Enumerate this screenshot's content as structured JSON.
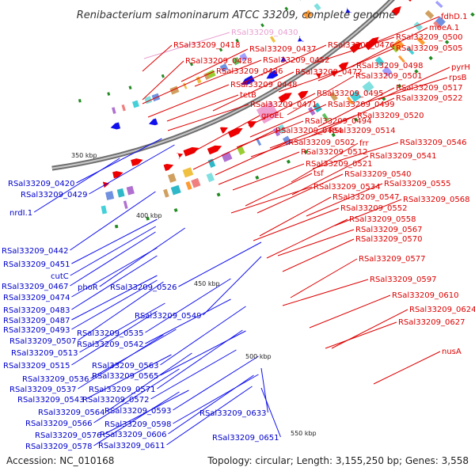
{
  "title": "Renibacterium salmoninarum ATCC 33209, complete genome",
  "accession": "Accession: NC_010168",
  "topology": "Topology: circular; Length: 3,155,250 bp; Genes: 3,558",
  "colors": {
    "forward": "#ee0000",
    "reverse": "#1010ee",
    "pseudo": "#f0a0d0",
    "backbone": "#909090",
    "tick": "#228b22"
  },
  "scale_labels": [
    "350 kbp",
    "400 kbp",
    "450 kbp",
    "500 kbp",
    "550 kbp"
  ],
  "forward_labels": [
    "RSal33209_0430",
    "fdhD.1",
    "moeA.1",
    "RSal33209_0418",
    "RSal33209_0437",
    "RSal33209_0476",
    "RSal33209_0500",
    "RSal33209_0505",
    "RSal33209_0428",
    "RSal33209_0452",
    "RSal33209_0436",
    "RSal33209_0472",
    "RSal33209_0498",
    "pyrH",
    "RSal33209_0501",
    "rpsB",
    "RSal33209_0448",
    "RSal33209_0517",
    "tetB",
    "RSal33209_0495",
    "RSal33209_0522",
    "RSal33209_0471",
    "RSal33209_0499",
    "groEL",
    "RSal33209_0494",
    "RSal33209_0520",
    "RSal33209_0484",
    "RSal33209_0514",
    "RSal33209_0502",
    "frr",
    "RSal33209_0546",
    "RSal33209_0512",
    "RSal33209_0541",
    "RSal33209_0521",
    "tsf",
    "RSal33209_0540",
    "RSal33209_0534",
    "RSal33209_0555",
    "RSal33209_0547",
    "RSal33209_0568",
    "RSal33209_0552",
    "RSal33209_0558",
    "RSal33209_0567",
    "RSal33209_0570",
    "RSal33209_0577",
    "RSal33209_0597",
    "RSal33209_0610",
    "RSal33209_0624",
    "RSal33209_0627",
    "nusA"
  ],
  "reverse_labels": [
    "RSal33209_0420",
    "RSal33209_0429",
    "nrdI.1",
    "RSal33209_0442",
    "RSal33209_0451",
    "cutC",
    "RSal33209_0467",
    "phoR",
    "RSal33209_0526",
    "RSal33209_0474",
    "RSal33209_0483",
    "RSal33209_0549",
    "RSal33209_0487",
    "RSal33209_0493",
    "RSal33209_0535",
    "RSal33209_0507",
    "RSal33209_0542",
    "RSal33209_0513",
    "RSal33209_0515",
    "RSal33209_0563",
    "RSal33209_0565",
    "RSal33209_0536",
    "RSal33209_0537",
    "RSal33209_0571",
    "RSal33209_0543",
    "RSal33209_0572",
    "RSal33209_0593",
    "RSal33209_0564",
    "RSal33209_0633",
    "RSal33209_0598",
    "RSal33209_0566",
    "RSal33209_0606",
    "RSal33209_0576",
    "RSal33209_0651",
    "RSal33209_0578",
    "RSal33209_0611"
  ]
}
